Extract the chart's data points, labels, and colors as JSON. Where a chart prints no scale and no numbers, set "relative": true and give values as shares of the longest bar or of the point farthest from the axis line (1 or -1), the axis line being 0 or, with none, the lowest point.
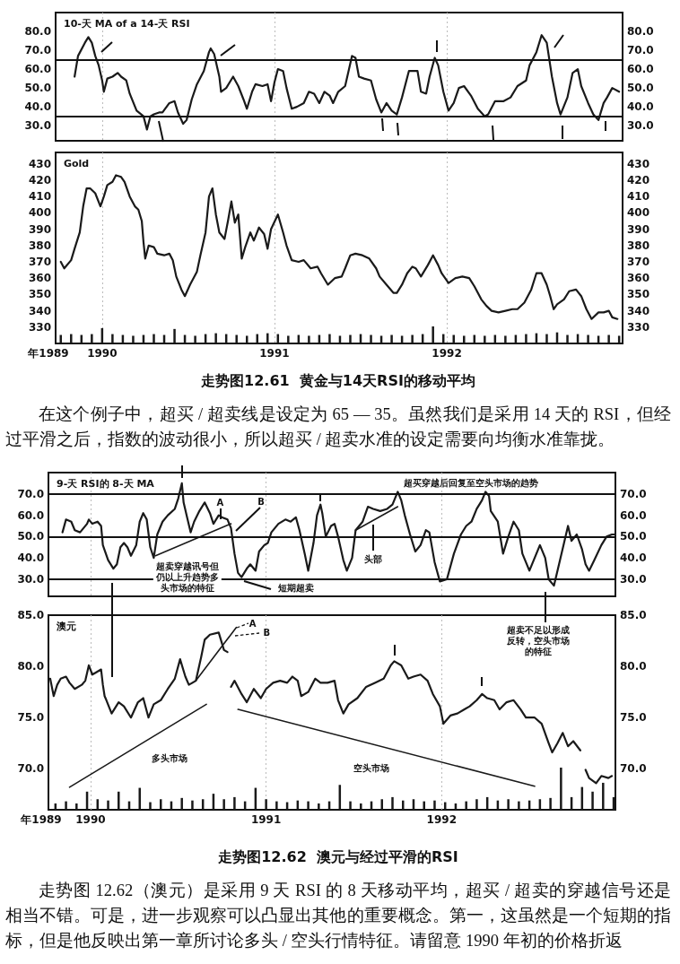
{
  "chart_data": [
    {
      "type": "line",
      "title": "10-天 MA of a 14-天 RSI",
      "x": [
        1989.84,
        1989.86,
        1989.9,
        1989.92,
        1989.94,
        1989.96,
        1989.98,
        1990.0,
        1990.01,
        1990.03,
        1990.06,
        1990.09,
        1990.11,
        1990.14,
        1990.16,
        1990.2,
        1990.24,
        1990.26,
        1990.28,
        1990.3,
        1990.33,
        1990.35,
        1990.39,
        1990.42,
        1990.44,
        1990.47,
        1990.49,
        1990.52,
        1990.55,
        1990.59,
        1990.62,
        1990.63,
        1990.65,
        1990.68,
        1990.69,
        1990.72,
        1990.76,
        1990.79,
        1990.82,
        1990.84,
        1990.87,
        1990.89,
        1990.93,
        1990.96,
        1990.98,
        1991.0,
        1991.02,
        1991.05,
        1991.07,
        1991.1,
        1991.13,
        1991.17,
        1991.2,
        1991.23,
        1991.26,
        1991.29,
        1991.32,
        1991.34,
        1991.37,
        1991.41,
        1991.45,
        1991.47,
        1991.49,
        1991.52,
        1991.56,
        1991.59,
        1991.62,
        1991.65,
        1991.68,
        1991.71,
        1991.74,
        1991.78,
        1991.83,
        1991.85,
        1991.88,
        1991.9,
        1991.93,
        1991.95,
        1991.98,
        1992.01,
        1992.04,
        1992.07,
        1992.1,
        1992.14,
        1992.18,
        1992.22,
        1992.24,
        1992.28,
        1992.33,
        1992.37,
        1992.41,
        1992.46,
        1992.48,
        1992.52,
        1992.55,
        1992.58,
        1992.61,
        1992.64,
        1992.66,
        1992.7,
        1992.73,
        1992.76,
        1992.78,
        1992.82,
        1992.85,
        1992.88,
        1992.91,
        1992.93,
        1992.96,
        1993.0
      ],
      "values": [
        56,
        67,
        74,
        77,
        74,
        67,
        62,
        54,
        48,
        55,
        56,
        58,
        56,
        54,
        47,
        38,
        35,
        28,
        35,
        36,
        37,
        37,
        42,
        43,
        37,
        31,
        33,
        44,
        52,
        59,
        69,
        71,
        68,
        56,
        48,
        50,
        56,
        51,
        44,
        39,
        48,
        52,
        51,
        52,
        43,
        53,
        60,
        59,
        50,
        39,
        40,
        42,
        48,
        47,
        42,
        48,
        46,
        42,
        48,
        51,
        67,
        66,
        56,
        55,
        54,
        44,
        37,
        42,
        38,
        36,
        45,
        59,
        59,
        48,
        47,
        56,
        66,
        62,
        48,
        38,
        42,
        50,
        51,
        46,
        39,
        35,
        36,
        43,
        43,
        45,
        51,
        54,
        62,
        69,
        78,
        74,
        56,
        42,
        36,
        45,
        58,
        60,
        51,
        42,
        36,
        33,
        42,
        45,
        50,
        48
      ],
      "color": "#1a1a1a",
      "xlim": [
        1989.73,
        1993.02
      ],
      "xticks": [
        1990,
        1991,
        1992
      ],
      "ylim": [
        22,
        90
      ],
      "yticks": [
        {
          "value": 30,
          "label": "30.0"
        },
        {
          "value": 40,
          "label": "40.0"
        },
        {
          "value": 50,
          "label": "50.0"
        },
        {
          "value": 60,
          "label": "60.0"
        },
        {
          "value": 70,
          "label": "70.0"
        },
        {
          "value": 80,
          "label": "80.0"
        }
      ],
      "y2lim": [
        22,
        90
      ],
      "y2ticks": [
        {
          "value": 30,
          "label": "30.0"
        },
        {
          "value": 40,
          "label": "40.0"
        },
        {
          "value": 50,
          "label": "50.0"
        },
        {
          "value": 60,
          "label": "60.0"
        },
        {
          "value": 70,
          "label": "70.0"
        },
        {
          "value": 80,
          "label": "80.0"
        }
      ],
      "ref_lines": [
        {
          "axis": "y",
          "value": 65
        },
        {
          "axis": "y",
          "value": 35
        }
      ],
      "grid": "x",
      "tick_labels": "y"
    },
    {
      "type": "line",
      "title": "Gold",
      "xlabel": "年1989",
      "x": [
        1989.76,
        1989.78,
        1989.82,
        1989.84,
        1989.87,
        1989.89,
        1989.91,
        1989.93,
        1989.96,
        1989.99,
        1990.01,
        1990.03,
        1990.06,
        1990.08,
        1990.11,
        1990.13,
        1990.16,
        1990.19,
        1990.21,
        1990.23,
        1990.24,
        1990.25,
        1990.27,
        1990.3,
        1990.32,
        1990.36,
        1990.39,
        1990.41,
        1990.43,
        1990.46,
        1990.48,
        1990.51,
        1990.55,
        1990.57,
        1990.6,
        1990.62,
        1990.64,
        1990.66,
        1990.68,
        1990.71,
        1990.73,
        1990.75,
        1990.77,
        1990.79,
        1990.81,
        1990.83,
        1990.86,
        1990.88,
        1990.91,
        1990.94,
        1990.96,
        1990.98,
        1991.02,
        1991.05,
        1991.07,
        1991.1,
        1991.14,
        1991.17,
        1991.21,
        1991.25,
        1991.27,
        1991.31,
        1991.35,
        1991.39,
        1991.41,
        1991.44,
        1991.47,
        1991.51,
        1991.55,
        1991.59,
        1991.61,
        1991.65,
        1991.69,
        1991.71,
        1991.74,
        1991.77,
        1991.8,
        1991.82,
        1991.85,
        1991.89,
        1991.92,
        1991.95,
        1991.97,
        1992.01,
        1992.05,
        1992.09,
        1992.13,
        1992.16,
        1992.2,
        1992.23,
        1992.26,
        1992.3,
        1992.34,
        1992.38,
        1992.41,
        1992.45,
        1992.49,
        1992.52,
        1992.55,
        1992.58,
        1992.6,
        1992.62,
        1992.64,
        1992.68,
        1992.71,
        1992.75,
        1992.78,
        1992.81,
        1992.84,
        1992.88,
        1992.91,
        1992.94,
        1992.96,
        1992.99
      ],
      "values": [
        370,
        366,
        371,
        378,
        388,
        404,
        415,
        415,
        412,
        404,
        410,
        417,
        419,
        423,
        422,
        419,
        410,
        404,
        402,
        395,
        382,
        372,
        380,
        379,
        375,
        374,
        375,
        371,
        361,
        353,
        349,
        356,
        364,
        374,
        388,
        410,
        415,
        399,
        388,
        384,
        395,
        407,
        394,
        399,
        372,
        379,
        388,
        383,
        391,
        387,
        378,
        390,
        399,
        388,
        380,
        371,
        370,
        371,
        366,
        367,
        363,
        356,
        360,
        361,
        366,
        374,
        375,
        374,
        372,
        366,
        361,
        356,
        351,
        351,
        356,
        363,
        367,
        366,
        361,
        368,
        374,
        368,
        363,
        357,
        360,
        361,
        360,
        355,
        347,
        343,
        340,
        339,
        340,
        341,
        341,
        345,
        353,
        363,
        363,
        356,
        349,
        341,
        344,
        347,
        352,
        353,
        349,
        341,
        335,
        339,
        339,
        340,
        336,
        335
      ],
      "color": "#1a1a1a",
      "xlim": [
        1989.73,
        1993.02
      ],
      "xticks": [
        1990,
        1991,
        1992
      ],
      "ylim": [
        320,
        437
      ],
      "yticks": [
        330,
        340,
        350,
        360,
        370,
        380,
        390,
        400,
        410,
        420,
        430
      ],
      "y2lim": [
        320,
        437
      ],
      "y2ticks": [
        330,
        340,
        350,
        360,
        370,
        380,
        390,
        400,
        410,
        420,
        430
      ],
      "grid": "x",
      "annotations": [
        "走势图12.61  黄金与14天RSI的移动平均",
        "在这个例子中，超买 / 超卖线是设定为 65 — 35。虽然我们是采用 14 天的 RSI，但经过平滑之后，指数的波动很小，所以超买 / 超卖水准的设定需要向均衡水准靠拢。"
      ]
    },
    {
      "type": "bar",
      "relative": true,
      "x": [
        1989.76,
        1989.82,
        1989.88,
        1989.94,
        1990.0,
        1990.06,
        1990.12,
        1990.18,
        1990.24,
        1990.3,
        1990.36,
        1990.42,
        1990.48,
        1990.54,
        1990.6,
        1990.66,
        1990.72,
        1990.78,
        1990.84,
        1990.9,
        1990.96,
        1991.02,
        1991.08,
        1991.14,
        1991.2,
        1991.26,
        1991.32,
        1991.38,
        1991.44,
        1991.5,
        1991.56,
        1991.62,
        1991.68,
        1991.74,
        1991.8,
        1991.86,
        1991.92,
        1991.98,
        1992.04,
        1992.1,
        1992.16,
        1992.22,
        1992.28,
        1992.34,
        1992.4,
        1992.46,
        1992.52,
        1992.58,
        1992.64,
        1992.7,
        1992.76,
        1992.82,
        1992.88,
        1992.94,
        1993.0
      ],
      "values": [
        0.5,
        0.55,
        0.5,
        0.55,
        0.9,
        0.55,
        0.5,
        0.45,
        0.5,
        0.55,
        0.5,
        0.85,
        0.5,
        0.45,
        0.55,
        0.6,
        0.55,
        0.5,
        0.45,
        0.55,
        0.6,
        0.55,
        0.45,
        0.5,
        0.45,
        0.5,
        0.55,
        0.45,
        0.5,
        0.55,
        0.5,
        0.45,
        0.5,
        0.45,
        0.5,
        0.55,
        1,
        0.55,
        0.5,
        0.45,
        0.5,
        0.45,
        0.5,
        0.45,
        0.5,
        0.55,
        0.6,
        0.55,
        0.65,
        0.5,
        0.55,
        0.5,
        0.45,
        0.5,
        0.45
      ],
      "color": "#1a1a1a",
      "xlim": [
        1989.73,
        1993.02
      ],
      "tick_labels": false
    },
    {
      "type": "line",
      "title": "9-天 RSI的 8-天 MA",
      "x": [
        1989.84,
        1989.86,
        1989.89,
        1989.91,
        1989.94,
        1989.98,
        1989.99,
        1990.01,
        1990.04,
        1990.06,
        1990.07,
        1990.1,
        1990.13,
        1990.15,
        1990.17,
        1990.19,
        1990.21,
        1990.23,
        1990.26,
        1990.28,
        1990.3,
        1990.32,
        1990.34,
        1990.36,
        1990.38,
        1990.41,
        1990.44,
        1990.48,
        1990.5,
        1990.52,
        1990.53,
        1990.55,
        1990.57,
        1990.59,
        1990.62,
        1990.65,
        1990.68,
        1990.7,
        1990.73,
        1990.75,
        1990.78,
        1990.8,
        1990.82,
        1990.84,
        1990.86,
        1990.89,
        1990.91,
        1990.94,
        1990.96,
        1990.99,
        1991.01,
        1991.03,
        1991.07,
        1991.11,
        1991.14,
        1991.17,
        1991.19,
        1991.22,
        1991.24,
        1991.27,
        1991.29,
        1991.31,
        1991.32,
        1991.34,
        1991.37,
        1991.39,
        1991.41,
        1991.44,
        1991.46,
        1991.49,
        1991.51,
        1991.55,
        1991.58,
        1991.61,
        1991.65,
        1991.69,
        1991.72,
        1991.75,
        1991.77,
        1991.79,
        1991.82,
        1991.85,
        1991.88,
        1991.91,
        1991.93,
        1991.96,
        1991.99,
        1992.03,
        1992.07,
        1992.11,
        1992.14,
        1992.17,
        1992.2,
        1992.23,
        1992.25,
        1992.27,
        1992.28,
        1992.32,
        1992.35,
        1992.38,
        1992.41,
        1992.44,
        1992.46,
        1992.5,
        1992.53,
        1992.56,
        1992.59,
        1992.61,
        1992.64,
        1992.66,
        1992.7,
        1992.72,
        1992.74,
        1992.77,
        1992.8,
        1992.82,
        1992.84,
        1992.87,
        1992.91,
        1992.94,
        1992.97,
        1992.99
      ],
      "series": [
        {
          "color": "#1a1a1a",
          "values": [
            52,
            58,
            57,
            53,
            52,
            56,
            58,
            56,
            57,
            55,
            46,
            39,
            35,
            37,
            45,
            47,
            45,
            41,
            46,
            57,
            61,
            58,
            45,
            40,
            51,
            57,
            60,
            63,
            68,
            75,
            66,
            59,
            52,
            57,
            62,
            66,
            61,
            56,
            60,
            59,
            58,
            54,
            42,
            33,
            31,
            35,
            37,
            34,
            43,
            46,
            47,
            52,
            56,
            58,
            57,
            59,
            53,
            42,
            34,
            47,
            60,
            65,
            61,
            50,
            55,
            56,
            50,
            39,
            34,
            40,
            53,
            57,
            64,
            63,
            62,
            63,
            65,
            71,
            67,
            60,
            51,
            43,
            46,
            53,
            52,
            38,
            29,
            30,
            42,
            51,
            55,
            57,
            63,
            67,
            71,
            69,
            62,
            57,
            42,
            50,
            57,
            53,
            42,
            34,
            40,
            46,
            40,
            30,
            27,
            34,
            48,
            55,
            48,
            51,
            44,
            37,
            34,
            39,
            46,
            50,
            51,
            51
          ]
        },
        {
          "type": "line",
          "color": "#1a1a1a",
          "x": [
            1990.37,
            1990.8
          ],
          "values": [
            41,
            56
          ]
        },
        {
          "type": "line",
          "color": "#1a1a1a",
          "x": [
            1991.51,
            1991.75
          ],
          "values": [
            53,
            64
          ]
        }
      ],
      "xlim": [
        1989.76,
        1992.99
      ],
      "xticks": [
        1990,
        1991,
        1992
      ],
      "ylim": [
        22,
        80
      ],
      "yticks": [
        {
          "value": 30,
          "label": "30.0"
        },
        {
          "value": 40,
          "label": "40.0"
        },
        {
          "value": 50,
          "label": "50.0"
        },
        {
          "value": 60,
          "label": "60.0"
        },
        {
          "value": 70,
          "label": "70.0"
        }
      ],
      "y2lim": [
        22,
        80
      ],
      "y2ticks": [
        {
          "value": 30,
          "label": "30.0"
        },
        {
          "value": 40,
          "label": "40.0"
        },
        {
          "value": 50,
          "label": "50.0"
        },
        {
          "value": 60,
          "label": "60.0"
        },
        {
          "value": 70,
          "label": "70.0"
        }
      ],
      "ref_lines": [
        {
          "axis": "y",
          "value": 70
        },
        {
          "axis": "y",
          "value": 50
        },
        {
          "axis": "y",
          "value": 30
        }
      ],
      "grid": "x",
      "tick_labels": "y",
      "annotations": [
        "A",
        "B",
        "头部",
        "短期超卖",
        "超买穿越后回复至空头市场的趋势",
        "超卖穿越讯号但仍以上升趋势多头市场的特征"
      ]
    },
    {
      "type": "line",
      "title": "澳元",
      "xlabel": "年1989",
      "x": [
        1989.77,
        1989.79,
        1989.81,
        1989.83,
        1989.86,
        1989.88,
        1989.91,
        1989.95,
        1989.97,
        1989.99,
        1990.01,
        1990.03,
        1990.06,
        1990.07,
        1990.08,
        1990.09,
        1990.12,
        1990.16,
        1990.19,
        1990.23,
        1990.27,
        1990.3,
        1990.33,
        1990.36,
        1990.4,
        1990.44,
        1990.48,
        1990.51,
        1990.54,
        1990.56,
        1990.6,
        1990.63,
        1990.65,
        1990.68,
        1990.73,
        1990.76,
        1990.78,
        1990.79,
        1990.8,
        1990.82,
        1990.86,
        1990.89,
        1990.93,
        1990.97,
        1991.0,
        1991.04,
        1991.08,
        1991.12,
        1991.15,
        1991.18,
        1991.2,
        1991.24,
        1991.28,
        1991.31,
        1991.35,
        1991.39,
        1991.41,
        1991.44,
        1991.47,
        1991.52,
        1991.57,
        1991.62,
        1991.67,
        1991.71,
        1991.73,
        1991.77,
        1991.81,
        1991.84,
        1991.88,
        1991.92,
        1991.95,
        1991.99,
        1992.01,
        1992.05,
        1992.09,
        1992.13,
        1992.16,
        1992.2,
        1992.23,
        1992.26,
        1992.3,
        1992.33,
        1992.37,
        1992.41,
        1992.45,
        1992.48,
        1992.53,
        1992.57,
        1992.61,
        1992.63,
        1992.66,
        1992.69,
        1992.72,
        1992.75,
        1992.79,
        1992.8,
        1992.82,
        1992.84,
        1992.88,
        1992.91,
        1992.95,
        1992.97
      ],
      "series": [
        {
          "color": "#1a1a1a",
          "values": [
            78.8,
            77.1,
            78.2,
            78.8,
            79.0,
            78.4,
            77.8,
            78.2,
            78.6,
            80.1,
            79.2,
            79.4,
            79.7,
            78.2,
            77.1,
            76.7,
            75.4,
            76.5,
            76.1,
            75.0,
            76.5,
            76.9,
            75.0,
            76.3,
            76.7,
            77.8,
            78.8,
            80.7,
            79.0,
            78.2,
            78.6,
            80.9,
            82.6,
            83.1,
            83.3,
            81.6,
            81.4,
            null,
            78.0,
            78.6,
            77.3,
            76.5,
            77.8,
            76.9,
            77.8,
            78.4,
            78.6,
            78.4,
            79.0,
            78.6,
            77.1,
            77.5,
            78.8,
            78.4,
            78.4,
            78.6,
            76.7,
            75.4,
            76.3,
            76.9,
            78.0,
            78.4,
            78.8,
            80.1,
            80.5,
            80.1,
            78.8,
            79.0,
            79.2,
            78.6,
            77.3,
            76.1,
            74.4,
            75.2,
            75.4,
            75.8,
            76.1,
            76.7,
            77.3,
            76.9,
            76.7,
            75.8,
            76.5,
            76.7,
            75.8,
            75.0,
            75.0,
            74.4,
            72.5,
            71.6,
            72.5,
            73.5,
            72.2,
            72.7,
            71.8,
            null,
            69.9,
            69.1,
            68.6,
            69.3,
            69.1,
            69.3
          ]
        },
        {
          "type": "line",
          "color": "#1a1a1a",
          "x": [
            1989.88,
            1990.66
          ],
          "values": [
            68.2,
            76.3
          ]
        },
        {
          "type": "line",
          "color": "#1a1a1a",
          "x": [
            1990.84,
            1992.53
          ],
          "values": [
            75.8,
            68.3
          ]
        },
        {
          "type": "line",
          "color": "#1a1a1a",
          "x": [
            1990.6,
            1990.83
          ],
          "values": [
            78.6,
            83.8
          ]
        }
      ],
      "xlim": [
        1989.76,
        1992.99
      ],
      "xticks": [
        1990,
        1991,
        1992
      ],
      "ylim": [
        66,
        85
      ],
      "yticks": [
        {
          "value": 70,
          "label": "70.0"
        },
        {
          "value": 75,
          "label": "75.0"
        },
        {
          "value": 80,
          "label": "80.0"
        },
        {
          "value": 85,
          "label": "85.0"
        }
      ],
      "y2lim": [
        66,
        85
      ],
      "y2ticks": [
        {
          "value": 70,
          "label": "70.0"
        },
        {
          "value": 75,
          "label": "75.0"
        },
        {
          "value": 80,
          "label": "80.0"
        },
        {
          "value": 85,
          "label": "85.0"
        }
      ],
      "grid": "x",
      "annotations": [
        "A",
        "B",
        "多头市场",
        "空头市场",
        "超卖不足以形成反转，空头市场的特征",
        "走势图12.62  澳元与经过平滑的RSI",
        "走势图 12.62（澳元）是采用 9 天 RSI 的 8 天移动平均，超买 / 超卖的穿越信号还是相当不错。可是，进一步观察可以凸显出其他的重要概念。第一，这虽然是一个短期的指标，但是他反映出第一章所讨论多头 / 空头行情特征。请留意 1990 年初的价格折返"
      ]
    },
    {
      "type": "bar",
      "relative": true,
      "x": [
        1989.8,
        1989.86,
        1989.92,
        1989.98,
        1990.04,
        1990.1,
        1990.16,
        1990.22,
        1990.28,
        1990.34,
        1990.4,
        1990.46,
        1990.52,
        1990.58,
        1990.64,
        1990.7,
        1990.76,
        1990.82,
        1990.88,
        1990.94,
        1991.0,
        1991.06,
        1991.12,
        1991.18,
        1991.24,
        1991.3,
        1991.36,
        1991.42,
        1991.48,
        1991.54,
        1991.6,
        1991.66,
        1991.72,
        1991.78,
        1991.84,
        1991.9,
        1991.96,
        1992.02,
        1992.08,
        1992.14,
        1992.2,
        1992.26,
        1992.32,
        1992.38,
        1992.44,
        1992.5,
        1992.56,
        1992.62,
        1992.68,
        1992.74,
        1992.8,
        1992.86,
        1992.92,
        1992.98
      ],
      "values": [
        0.15,
        0.2,
        0.15,
        0.43,
        0.25,
        0.22,
        0.43,
        0.2,
        0.52,
        0.18,
        0.25,
        0.2,
        0.28,
        0.22,
        0.25,
        0.38,
        0.25,
        0.3,
        0.2,
        0.52,
        0.25,
        0.2,
        0.18,
        0.22,
        0.2,
        0.15,
        0.2,
        0.59,
        0.2,
        0.15,
        0.2,
        0.25,
        0.3,
        0.22,
        0.25,
        0.2,
        0.22,
        0.18,
        0.15,
        0.2,
        0.25,
        0.3,
        0.22,
        0.25,
        0.2,
        0.22,
        0.25,
        0.28,
        1,
        0.3,
        0.54,
        0.43,
        0.64,
        0.3
      ],
      "color": "#1a1a1a",
      "xlim": [
        1989.76,
        1992.99
      ],
      "tick_labels": false
    }
  ]
}
